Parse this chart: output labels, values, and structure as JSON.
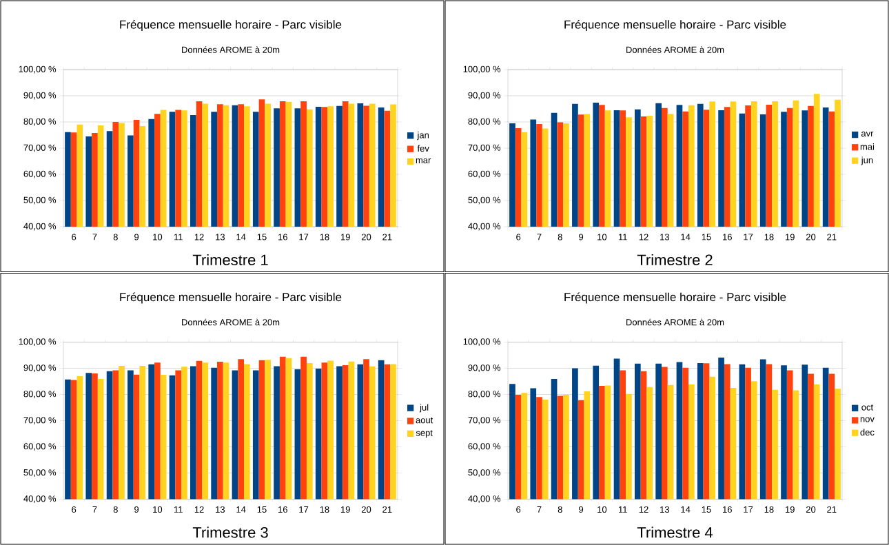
{
  "chart_data": [
    {
      "type": "bar",
      "title": "Fréquence mensuelle horaire - Parc visible",
      "subtitle": "Données AROME à 20m",
      "xlabel": "Trimestre 1",
      "categories": [
        "6",
        "7",
        "8",
        "9",
        "10",
        "11",
        "12",
        "13",
        "14",
        "15",
        "16",
        "17",
        "18",
        "19",
        "20",
        "21"
      ],
      "series": [
        {
          "name": "jan",
          "color": "#004586",
          "values": [
            76.1,
            74.5,
            76.5,
            74.9,
            81.1,
            83.9,
            82.6,
            83.9,
            86.4,
            83.9,
            85.2,
            85.2,
            85.8,
            86.1,
            87.1,
            85.5
          ]
        },
        {
          "name": "fev",
          "color": "#ff420e",
          "values": [
            76.0,
            75.8,
            80.0,
            80.8,
            83.1,
            84.6,
            87.9,
            86.8,
            86.8,
            88.6,
            87.9,
            87.9,
            85.7,
            87.9,
            86.2,
            84.3
          ]
        },
        {
          "name": "mar",
          "color": "#ffd320",
          "values": [
            79.0,
            78.7,
            79.6,
            78.4,
            84.6,
            84.4,
            87.0,
            86.4,
            86.0,
            87.0,
            87.7,
            84.8,
            86.0,
            87.0,
            87.0,
            86.7
          ]
        }
      ],
      "ylim": [
        40,
        100
      ],
      "yticks": [
        {
          "value": 40,
          "label": "40,00 %"
        },
        {
          "value": 50,
          "label": "50,00 %"
        },
        {
          "value": 60,
          "label": "60,00 %"
        },
        {
          "value": 70,
          "label": "70,00 %"
        },
        {
          "value": 80,
          "label": "80,00 %"
        },
        {
          "value": 90,
          "label": "90,00 %"
        },
        {
          "value": 100,
          "label": "100,00 %"
        }
      ],
      "grid": "y",
      "legend": "right"
    },
    {
      "type": "bar",
      "title": "Fréquence mensuelle horaire - Parc visible",
      "subtitle": "Données AROME à 20m",
      "xlabel": "Trimestre 2",
      "categories": [
        "6",
        "7",
        "8",
        "9",
        "10",
        "11",
        "12",
        "13",
        "14",
        "15",
        "16",
        "17",
        "18",
        "19",
        "20",
        "21"
      ],
      "series": [
        {
          "name": "avr",
          "color": "#004586",
          "values": [
            79.5,
            80.9,
            83.5,
            86.9,
            87.4,
            84.5,
            84.8,
            87.2,
            86.5,
            86.9,
            84.5,
            83.2,
            82.9,
            83.9,
            84.4,
            85.5
          ]
        },
        {
          "name": "mai",
          "color": "#ff420e",
          "values": [
            77.6,
            79.2,
            79.9,
            82.8,
            86.5,
            84.4,
            82.1,
            85.3,
            84.0,
            84.7,
            85.7,
            86.3,
            86.6,
            85.3,
            86.1,
            84.0
          ]
        },
        {
          "name": "jun",
          "color": "#ffd320",
          "values": [
            76.1,
            77.5,
            79.5,
            83.0,
            84.4,
            81.8,
            82.4,
            83.1,
            86.4,
            87.8,
            87.8,
            87.9,
            87.9,
            88.2,
            90.7,
            88.5
          ]
        }
      ],
      "ylim": [
        40,
        100
      ],
      "yticks": [
        {
          "value": 40,
          "label": "40,00 %"
        },
        {
          "value": 50,
          "label": "50,00 %"
        },
        {
          "value": 60,
          "label": "60,00 %"
        },
        {
          "value": 70,
          "label": "70,00 %"
        },
        {
          "value": 80,
          "label": "80,00 %"
        },
        {
          "value": 90,
          "label": "90,00 %"
        },
        {
          "value": 100,
          "label": "100,00 %"
        }
      ],
      "grid": "y",
      "legend": "right"
    },
    {
      "type": "bar",
      "title": "Fréquence mensuelle horaire - Parc visible",
      "subtitle": "Données AROME à 20m",
      "xlabel": "Trimestre 3",
      "categories": [
        "6",
        "7",
        "8",
        "9",
        "10",
        "11",
        "12",
        "13",
        "14",
        "15",
        "16",
        "17",
        "18",
        "19",
        "20",
        "21"
      ],
      "series": [
        {
          "name": "jul",
          "color": "#004586",
          "values": [
            85.7,
            88.2,
            88.9,
            89.2,
            91.5,
            87.3,
            90.8,
            90.2,
            89.2,
            89.2,
            90.8,
            89.6,
            89.9,
            90.8,
            91.5,
            93.1
          ]
        },
        {
          "name": "aout",
          "color": "#ff420e",
          "values": [
            85.5,
            88.0,
            89.2,
            87.6,
            92.2,
            89.2,
            92.8,
            92.5,
            93.5,
            93.1,
            94.4,
            94.4,
            92.2,
            91.2,
            93.5,
            91.5
          ]
        },
        {
          "name": "sept",
          "color": "#ffd320",
          "values": [
            87.0,
            85.9,
            90.9,
            90.9,
            87.5,
            90.6,
            92.2,
            92.2,
            91.6,
            93.2,
            93.9,
            92.0,
            92.9,
            92.6,
            90.7,
            91.6
          ]
        }
      ],
      "ylim": [
        40,
        100
      ],
      "yticks": [
        {
          "value": 40,
          "label": "40,00 %"
        },
        {
          "value": 50,
          "label": "50,00 %"
        },
        {
          "value": 60,
          "label": "60,00 %"
        },
        {
          "value": 70,
          "label": "70,00 %"
        },
        {
          "value": 80,
          "label": "80,00 %"
        },
        {
          "value": 90,
          "label": "90,00 %"
        },
        {
          "value": 100,
          "label": "100,00 %"
        }
      ],
      "grid": "y",
      "legend": "right"
    },
    {
      "type": "bar",
      "title": "Fréquence mensuelle horaire - Parc visible",
      "subtitle": "Données AROME à 20m",
      "xlabel": "Trimestre 4",
      "categories": [
        "6",
        "7",
        "8",
        "9",
        "10",
        "11",
        "12",
        "13",
        "14",
        "15",
        "16",
        "17",
        "18",
        "19",
        "20",
        "21"
      ],
      "series": [
        {
          "name": "oct",
          "color": "#004586",
          "values": [
            84.0,
            82.4,
            85.9,
            90.0,
            91.0,
            93.7,
            91.8,
            91.8,
            92.4,
            92.0,
            94.1,
            91.5,
            93.4,
            91.1,
            91.4,
            90.2
          ]
        },
        {
          "name": "nov",
          "color": "#ff420e",
          "values": [
            79.9,
            79.0,
            79.5,
            77.8,
            83.3,
            89.2,
            88.9,
            90.5,
            90.2,
            91.9,
            91.6,
            90.2,
            91.6,
            89.2,
            87.9,
            87.9
          ]
        },
        {
          "name": "dec",
          "color": "#ffd320",
          "values": [
            80.6,
            78.0,
            79.9,
            81.2,
            83.4,
            80.2,
            82.8,
            83.6,
            83.8,
            86.8,
            82.5,
            85.1,
            81.8,
            81.6,
            83.8,
            82.2
          ]
        }
      ],
      "ylim": [
        40,
        100
      ],
      "yticks": [
        {
          "value": 40,
          "label": "40,00 %"
        },
        {
          "value": 50,
          "label": "50,00 %"
        },
        {
          "value": 60,
          "label": "60,00 %"
        },
        {
          "value": 70,
          "label": "70,00 %"
        },
        {
          "value": 80,
          "label": "80,00 %"
        },
        {
          "value": 90,
          "label": "90,00 %"
        },
        {
          "value": 100,
          "label": "100,00 %"
        }
      ],
      "grid": "y",
      "legend": "right"
    }
  ]
}
